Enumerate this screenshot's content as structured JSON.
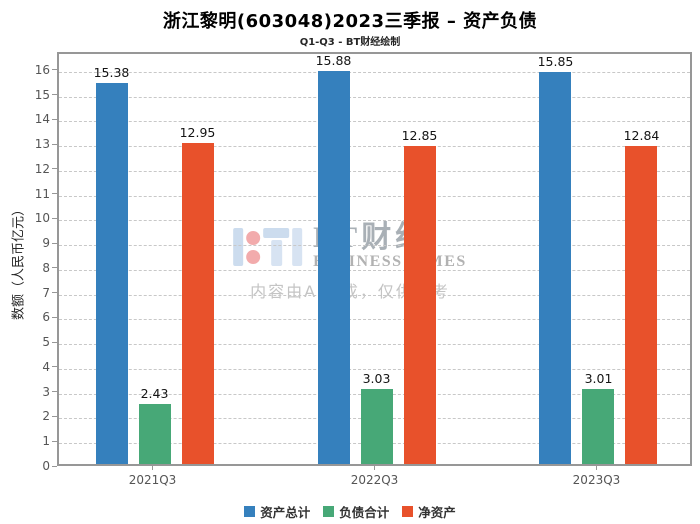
{
  "chart_data": {
    "type": "bar",
    "title": "浙江黎明(603048)2023三季报 – 资产负债",
    "subtitle": "Q1-Q3 - BT财经绘制",
    "xlabel": "",
    "ylabel": "数额（人民币亿元）",
    "categories": [
      "2021Q3",
      "2022Q3",
      "2023Q3"
    ],
    "series": [
      {
        "name": "资产总计",
        "color": "#3580bd",
        "values": [
          15.38,
          15.88,
          15.85
        ]
      },
      {
        "name": "负债合计",
        "color": "#47a877",
        "values": [
          2.43,
          3.03,
          3.01
        ]
      },
      {
        "name": "净资产",
        "color": "#e8512b",
        "values": [
          12.95,
          12.85,
          12.84
        ]
      }
    ],
    "ylim": [
      0,
      16
    ],
    "ytick_step": 1,
    "grid": "horizontal-dashed",
    "legend_position": "bottom"
  },
  "watermark": {
    "brand": "BT财经",
    "brand_sub": "BUSINESS TIMES",
    "disclaimer": "内容由AI生成，仅供参考"
  }
}
